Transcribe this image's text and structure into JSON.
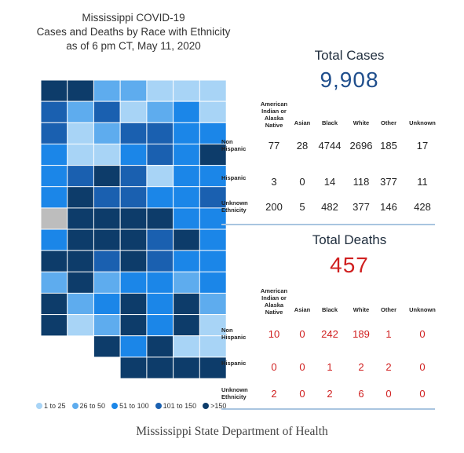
{
  "title": {
    "line1": "Mississippi COVID-19",
    "line2": "Cases and Deaths by Race with Ethnicity",
    "line3": "as of 6 pm CT, May 11, 2020"
  },
  "colors": {
    "bin1": "#a8d4f6",
    "bin2": "#5eacee",
    "bin3": "#1b86e8",
    "bin4": "#1a60b0",
    "bin5": "#0d3c6a",
    "nodata": "#bdbdbd",
    "accent_blue": "#1f4e8c",
    "accent_red": "#d02020"
  },
  "legend": [
    {
      "label": "1 to 25",
      "color": "#a8d4f6"
    },
    {
      "label": "26 to 50",
      "color": "#5eacee"
    },
    {
      "label": "51 to 100",
      "color": "#1b86e8"
    },
    {
      "label": "101 to 150",
      "color": "#1a60b0"
    },
    {
      "label": ">150",
      "color": "#0d3c6a"
    }
  ],
  "map_bins": [
    [
      5,
      5,
      2,
      2,
      1,
      1,
      1
    ],
    [
      4,
      2,
      4,
      1,
      2,
      3,
      1
    ],
    [
      4,
      1,
      2,
      4,
      4,
      3,
      3
    ],
    [
      3,
      1,
      1,
      3,
      4,
      3,
      5
    ],
    [
      3,
      4,
      5,
      4,
      1,
      3,
      3
    ],
    [
      3,
      5,
      4,
      4,
      3,
      3,
      4
    ],
    [
      0,
      5,
      5,
      5,
      5,
      3,
      3
    ],
    [
      3,
      5,
      5,
      5,
      4,
      5,
      3
    ],
    [
      5,
      5,
      4,
      5,
      4,
      3,
      3
    ],
    [
      2,
      5,
      2,
      3,
      3,
      2,
      3
    ],
    [
      5,
      2,
      3,
      5,
      3,
      5,
      2
    ],
    [
      5,
      1,
      2,
      5,
      3,
      5,
      1
    ],
    [
      null,
      null,
      5,
      3,
      5,
      1,
      1
    ],
    [
      null,
      null,
      null,
      5,
      5,
      5,
      5
    ]
  ],
  "cases": {
    "title": "Total Cases",
    "total": "9,908",
    "columns": [
      "American Indian or Alaska Native",
      "Asian",
      "Black",
      "White",
      "Other",
      "Unknown"
    ],
    "rows": [
      {
        "label": "Non Hispanic",
        "values": [
          "77",
          "28",
          "4744",
          "2696",
          "185",
          "17"
        ]
      },
      {
        "label": "Hispanic",
        "values": [
          "3",
          "0",
          "14",
          "118",
          "377",
          "11"
        ]
      },
      {
        "label": "Unknown Ethnicity",
        "values": [
          "200",
          "5",
          "482",
          "377",
          "146",
          "428"
        ]
      }
    ]
  },
  "deaths": {
    "title": "Total Deaths",
    "total": "457",
    "columns": [
      "American Indian or Alaska Native",
      "Asian",
      "Black",
      "White",
      "Other",
      "Unknown"
    ],
    "rows": [
      {
        "label": "Non Hispanic",
        "values": [
          "10",
          "0",
          "242",
          "189",
          "1",
          "0"
        ]
      },
      {
        "label": "Hispanic",
        "values": [
          "0",
          "0",
          "1",
          "2",
          "2",
          "0"
        ]
      },
      {
        "label": "Unknown Ethnicity",
        "values": [
          "2",
          "0",
          "2",
          "6",
          "0",
          "0"
        ]
      }
    ]
  },
  "footer": "Mississippi State Department of Health"
}
